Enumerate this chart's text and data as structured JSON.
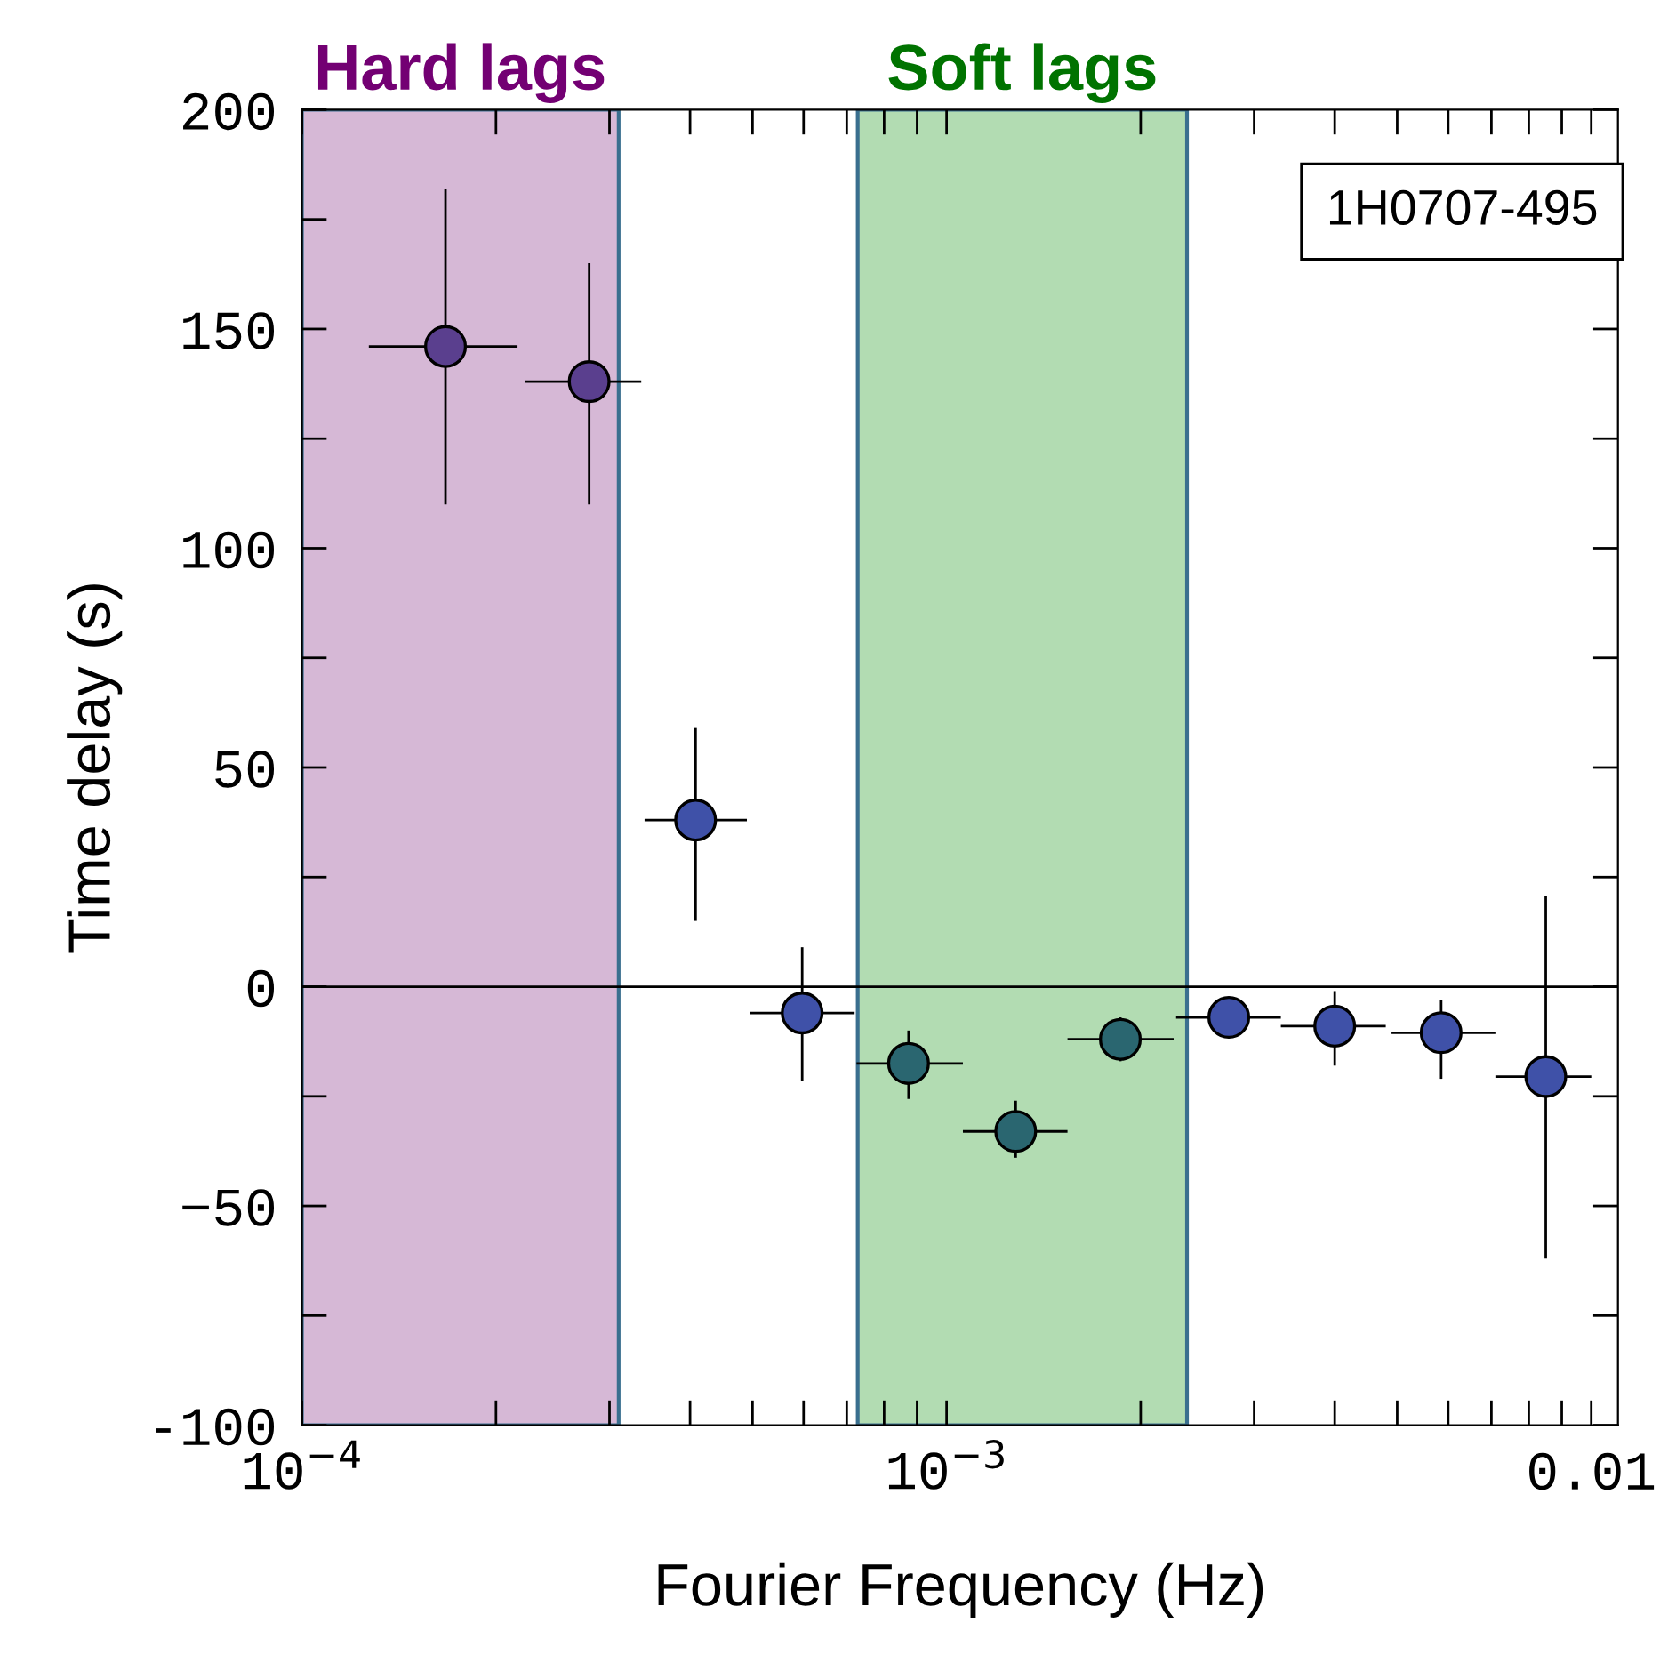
{
  "chart_data": {
    "type": "scatter",
    "xlabel": "Fourier Frequency (Hz)",
    "ylabel": "Time delay (s)",
    "log": "x",
    "annotations": [
      "1H0707-495"
    ],
    "x": [
      0.000167,
      0.000279,
      0.000408,
      0.000597,
      0.000873,
      0.00128,
      0.00186,
      0.00274,
      0.004,
      0.00585,
      0.0085
    ],
    "series": [
      {
        "values": [
          146,
          138,
          38,
          -6,
          -17.5,
          -33,
          -12,
          -7,
          -9,
          -10.5,
          -20.5
        ],
        "colors": [
          "#5a3f8e",
          "#5a3f8e",
          "#3f51a8",
          "#3f51a8",
          "#2a6670",
          "#2a6670",
          "#2a6670",
          "#3f51a8",
          "#3f51a8",
          "#3f51a8",
          "#3f51a8"
        ],
        "errors": [
          [
            110,
            182
          ],
          [
            110,
            165
          ],
          [
            15,
            59
          ],
          [
            -21.5,
            9
          ],
          [
            -25.6,
            -10
          ],
          [
            -39,
            -26
          ],
          [
            -17,
            -7
          ],
          [
            -11,
            -3
          ],
          [
            -18,
            -1
          ],
          [
            -21,
            -3
          ],
          [
            -62,
            20.7
          ]
        ],
        "xerrors": [
          [
            0.000127,
            0.000216
          ],
          [
            0.000222,
            0.000336
          ],
          [
            0.00034,
            0.00049
          ],
          [
            0.000495,
            0.00072
          ],
          [
            0.000725,
            0.00106
          ],
          [
            0.00106,
            0.00154
          ],
          [
            0.00154,
            0.00225
          ],
          [
            0.00227,
            0.0033
          ],
          [
            0.0033,
            0.0048
          ],
          [
            0.0049,
            0.0071
          ],
          [
            0.0071,
            0.01
          ]
        ]
      }
    ],
    "marker": "circle",
    "xlim": [
      0.0001,
      0.011
    ],
    "xticks": [
      {
        "value": 0.0001,
        "label": "10$^{−4}$"
      },
      {
        "value": 0.0002,
        "label": null
      },
      {
        "value": 0.0003,
        "label": null
      },
      {
        "value": 0.0004,
        "label": null
      },
      {
        "value": 0.0005,
        "label": null
      },
      {
        "value": 0.0006,
        "label": null
      },
      {
        "value": 0.0007,
        "label": null
      },
      {
        "value": 0.0008,
        "label": null
      },
      {
        "value": 0.0009,
        "label": null
      },
      {
        "value": 0.001,
        "label": "10$^{−3}$"
      },
      {
        "value": 0.002,
        "label": null
      },
      {
        "value": 0.003,
        "label": null
      },
      {
        "value": 0.004,
        "label": null
      },
      {
        "value": 0.005,
        "label": null
      },
      {
        "value": 0.006,
        "label": null
      },
      {
        "value": 0.007,
        "label": null
      },
      {
        "value": 0.008,
        "label": null
      },
      {
        "value": 0.009,
        "label": null
      },
      {
        "value": 0.01,
        "label": "0.01"
      }
    ],
    "ylim": [
      -100,
      200
    ],
    "yticks": [
      {
        "value": -100,
        "label": "-100"
      },
      {
        "value": -75,
        "label": null
      },
      {
        "value": -50,
        "label": "−50"
      },
      {
        "value": -25,
        "label": null
      },
      0,
      {
        "value": 25,
        "label": null
      },
      50,
      {
        "value": 75,
        "label": null
      },
      100,
      {
        "value": 125,
        "label": null
      },
      150,
      {
        "value": 175,
        "label": null
      },
      200
    ],
    "ref_lines": [
      {
        "axis": "y",
        "value": 0,
        "color": "#000000"
      }
    ],
    "bands": [
      {
        "axis": "x",
        "from": 0.0001,
        "to": 0.00031,
        "label": "Hard lags",
        "color": "#d6b8d6"
      },
      {
        "axis": "x",
        "from": 0.000728,
        "to": 0.00236,
        "label": "Soft lags",
        "color": "#b2dcb2"
      }
    ],
    "grid": false
  }
}
